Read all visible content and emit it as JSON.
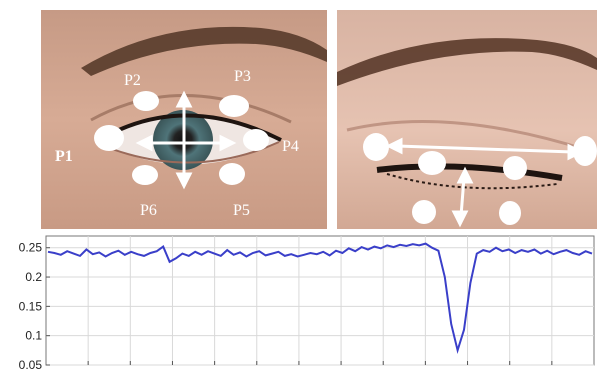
{
  "landmarks": {
    "p1": "P1",
    "p2": "P2",
    "p3": "P3",
    "p4": "P4",
    "p5": "P5",
    "p6": "P6"
  },
  "colors": {
    "skin": "#d6a58e",
    "iris": "#5d7f84",
    "markers": "#ffffff",
    "ear_line": "#3a3fc9",
    "grid": "#d9d9d9"
  },
  "chart_data": {
    "type": "line",
    "title": "",
    "xlabel": "",
    "ylabel": "",
    "ylim": [
      0.05,
      0.27
    ],
    "yticks": [
      "0.25",
      "0.2",
      "0.15",
      "0.1",
      "0.05"
    ],
    "ytick_values": [
      0.25,
      0.2,
      0.15,
      0.1,
      0.05
    ],
    "x_grid_count": 13,
    "series": [
      {
        "values": [
          0.243,
          0.241,
          0.238,
          0.244,
          0.24,
          0.236,
          0.247,
          0.239,
          0.242,
          0.235,
          0.241,
          0.245,
          0.238,
          0.243,
          0.239,
          0.236,
          0.241,
          0.244,
          0.252,
          0.226,
          0.232,
          0.24,
          0.236,
          0.243,
          0.238,
          0.244,
          0.24,
          0.236,
          0.246,
          0.238,
          0.242,
          0.235,
          0.241,
          0.244,
          0.237,
          0.24,
          0.243,
          0.236,
          0.239,
          0.235,
          0.238,
          0.241,
          0.239,
          0.243,
          0.237,
          0.245,
          0.241,
          0.249,
          0.244,
          0.251,
          0.247,
          0.252,
          0.249,
          0.254,
          0.251,
          0.255,
          0.253,
          0.256,
          0.254,
          0.257,
          0.25,
          0.245,
          0.2,
          0.12,
          0.075,
          0.11,
          0.19,
          0.24,
          0.246,
          0.243,
          0.25,
          0.244,
          0.247,
          0.241,
          0.246,
          0.243,
          0.247,
          0.24,
          0.245,
          0.239,
          0.243,
          0.246,
          0.241,
          0.238,
          0.244,
          0.24
        ]
      }
    ]
  }
}
